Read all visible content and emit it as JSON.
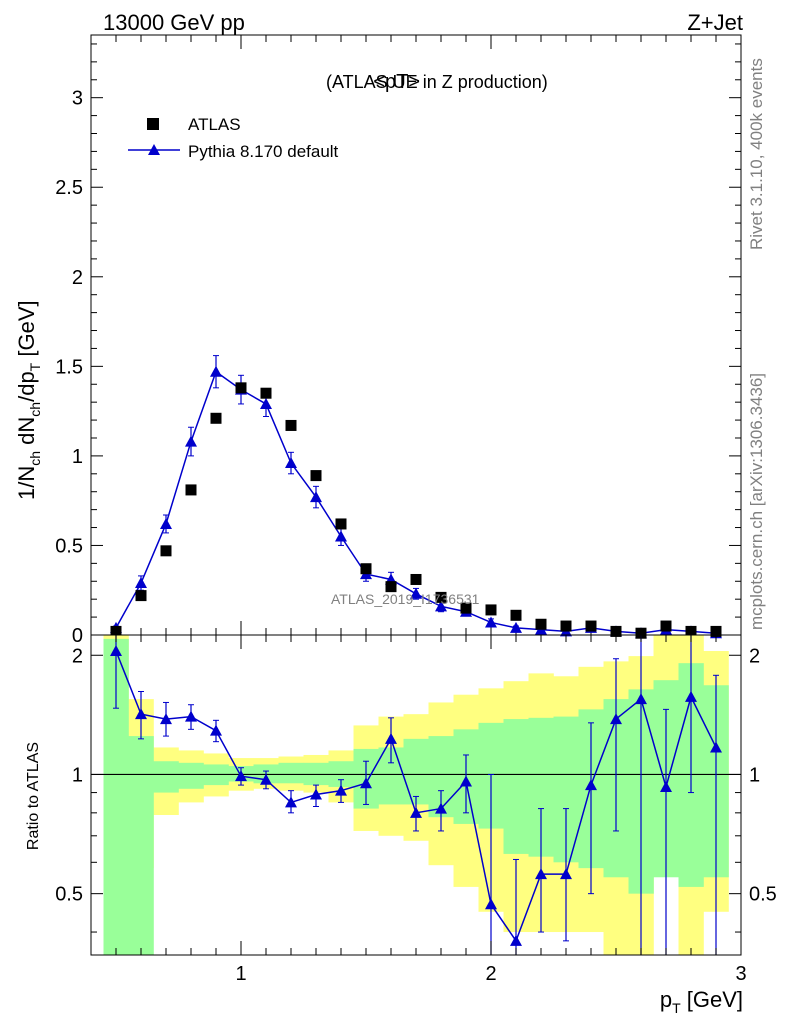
{
  "header": {
    "left": "13000 GeV pp",
    "right": "Z+Jet"
  },
  "side_labels": {
    "rivet": "Rivet 3.1.10,  400k events",
    "mcplots": "mcplots.cern.ch [arXiv:1306.3436]"
  },
  "watermark": "ATLAS_2019_I1736531",
  "chart_data": [
    {
      "type": "scatter",
      "title_main": "<pT>",
      "title_sub": "(ATLAS UE in Z production)",
      "ylabel_parts": [
        "1/N",
        "ch",
        " dN",
        "ch",
        "/dp",
        "T",
        " [GeV]"
      ],
      "xlim": [
        0.4,
        3.0
      ],
      "ylim": [
        0,
        3.35
      ],
      "yticks": [
        0,
        0.5,
        1,
        1.5,
        2,
        2.5,
        3
      ],
      "ytick_labels": [
        "0",
        "0.5",
        "1",
        "1.5",
        "2",
        "2.5",
        "3"
      ],
      "legend_position": "top-left",
      "series": [
        {
          "name": "ATLAS",
          "marker": "square",
          "color": "#000000",
          "x": [
            0.5,
            0.6,
            0.7,
            0.8,
            0.9,
            1.0,
            1.1,
            1.2,
            1.3,
            1.4,
            1.5,
            1.6,
            1.7,
            1.8,
            1.9,
            2.0,
            2.1,
            2.2,
            2.3,
            2.4,
            2.5,
            2.6,
            2.7,
            2.8,
            2.9
          ],
          "y": [
            0.02,
            0.22,
            0.47,
            0.81,
            1.21,
            1.38,
            1.35,
            1.17,
            0.89,
            0.62,
            0.37,
            0.27,
            0.31,
            0.21,
            0.15,
            0.14,
            0.11,
            0.06,
            0.05,
            0.05,
            0.02,
            0.01,
            0.05,
            0.02,
            0.02
          ]
        },
        {
          "name": "Pythia 8.170 default",
          "marker": "triangle",
          "color": "#0000cc",
          "x": [
            0.5,
            0.6,
            0.7,
            0.8,
            0.9,
            1.0,
            1.1,
            1.2,
            1.3,
            1.4,
            1.5,
            1.6,
            1.7,
            1.8,
            1.9,
            2.0,
            2.1,
            2.2,
            2.3,
            2.4,
            2.5,
            2.6,
            2.7,
            2.8,
            2.9
          ],
          "y": [
            0.04,
            0.29,
            0.62,
            1.08,
            1.47,
            1.37,
            1.29,
            0.96,
            0.77,
            0.55,
            0.34,
            0.31,
            0.23,
            0.16,
            0.13,
            0.07,
            0.04,
            0.03,
            0.02,
            0.04,
            0.02,
            0.01,
            0.03,
            0.02,
            0.01
          ],
          "yerr": [
            0.01,
            0.04,
            0.05,
            0.08,
            0.09,
            0.08,
            0.07,
            0.06,
            0.06,
            0.05,
            0.04,
            0.04,
            0.03,
            0.03,
            0.02,
            0.02,
            0.01,
            0.01,
            0.01,
            0.01,
            0.01,
            0.01,
            0.01,
            0.01,
            0.01
          ]
        }
      ]
    },
    {
      "type": "line",
      "ylabel": "Ratio to ATLAS",
      "xlabel_parts": [
        "p",
        "T",
        " [GeV]"
      ],
      "xlim": [
        0.4,
        3.0
      ],
      "ylim": [
        0.35,
        2.25
      ],
      "xticks": [
        1,
        2,
        3
      ],
      "xtick_labels": [
        "1",
        "2",
        "3"
      ],
      "yticks": [
        0.5,
        1,
        2
      ],
      "ytick_labels": [
        "0.5",
        "1",
        "2"
      ],
      "reference_line": 1.0,
      "bins": [
        0.45,
        0.55,
        0.65,
        0.75,
        0.85,
        0.95,
        1.05,
        1.15,
        1.25,
        1.35,
        1.45,
        1.55,
        1.65,
        1.75,
        1.85,
        1.95,
        2.05,
        2.15,
        2.25,
        2.35,
        2.45,
        2.55,
        2.65,
        2.75,
        2.85,
        2.95
      ],
      "band_total": {
        "color": "#ffff80",
        "low": [
          0.35,
          0.58,
          0.79,
          0.85,
          0.88,
          0.91,
          0.92,
          0.91,
          0.9,
          0.85,
          0.72,
          0.7,
          0.68,
          0.59,
          0.52,
          0.45,
          0.4,
          0.4,
          0.4,
          0.4,
          0.35,
          0.35,
          0.65,
          0.35,
          0.45
        ],
        "high": [
          2.25,
          1.55,
          1.17,
          1.15,
          1.13,
          1.1,
          1.1,
          1.11,
          1.12,
          1.15,
          1.33,
          1.4,
          1.42,
          1.52,
          1.59,
          1.65,
          1.72,
          1.8,
          1.77,
          1.87,
          1.93,
          1.99,
          2.25,
          2.25,
          2.05
        ]
      },
      "band_stat": {
        "color": "#99ff99",
        "low": [
          0.35,
          0.35,
          0.9,
          0.92,
          0.94,
          0.96,
          0.95,
          0.95,
          0.94,
          0.93,
          0.82,
          0.84,
          0.84,
          0.78,
          0.75,
          0.73,
          0.63,
          0.62,
          0.6,
          0.58,
          0.55,
          0.5,
          0.55,
          0.52,
          0.55
        ],
        "high": [
          2.2,
          1.25,
          1.08,
          1.07,
          1.06,
          1.05,
          1.06,
          1.07,
          1.07,
          1.08,
          1.16,
          1.17,
          1.23,
          1.25,
          1.3,
          1.35,
          1.38,
          1.39,
          1.4,
          1.46,
          1.55,
          1.64,
          1.73,
          1.91,
          1.68
        ]
      },
      "series": [
        {
          "name": "Pythia 8.170 default",
          "color": "#0000cc",
          "x": [
            0.5,
            0.6,
            0.7,
            0.8,
            0.9,
            1.0,
            1.1,
            1.2,
            1.3,
            1.4,
            1.5,
            1.6,
            1.7,
            1.8,
            1.9,
            2.0,
            2.1,
            2.2,
            2.3,
            2.4,
            2.5,
            2.6,
            2.7,
            2.8,
            2.9
          ],
          "y": [
            2.05,
            1.42,
            1.38,
            1.4,
            1.29,
            0.99,
            0.97,
            0.85,
            0.89,
            0.91,
            0.95,
            1.23,
            0.8,
            0.82,
            0.96,
            0.47,
            0.38,
            0.56,
            0.56,
            0.94,
            1.38,
            1.55,
            0.93,
            1.57,
            1.17
          ],
          "ylo": [
            1.47,
            1.23,
            1.25,
            1.3,
            1.21,
            0.94,
            0.92,
            0.8,
            0.83,
            0.85,
            0.84,
            1.07,
            0.72,
            0.72,
            0.8,
            0.35,
            0.35,
            0.4,
            0.38,
            0.5,
            0.72,
            0.35,
            0.35,
            0.9,
            0.35
          ],
          "yhi": [
            2.25,
            1.62,
            1.52,
            1.5,
            1.37,
            1.04,
            1.02,
            0.91,
            0.94,
            0.97,
            1.08,
            1.39,
            0.88,
            0.91,
            1.12,
            1.0,
            0.61,
            0.82,
            0.82,
            1.35,
            1.96,
            2.25,
            1.46,
            2.25,
            1.78
          ]
        }
      ]
    }
  ]
}
